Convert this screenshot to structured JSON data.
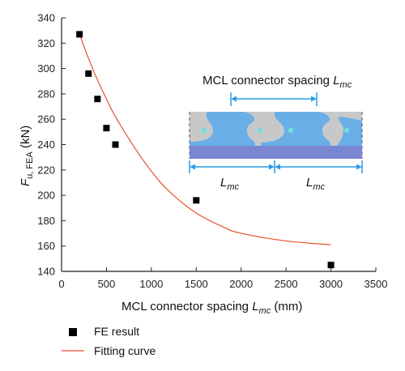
{
  "chart_data": {
    "type": "scatter",
    "x_ticks": [
      "0",
      "500",
      "1000",
      "1500",
      "2000",
      "2500",
      "3000",
      "3500"
    ],
    "y_ticks": [
      "140",
      "160",
      "180",
      "200",
      "220",
      "240",
      "260",
      "280",
      "300",
      "320",
      "340"
    ],
    "xlim": [
      0,
      3500
    ],
    "ylim": [
      140,
      340
    ],
    "xlabel": {
      "text": "MCL connector spacing ",
      "var": "L",
      "sub": "mc",
      "unit": " (mm)"
    },
    "ylabel": {
      "text": "F",
      "sub": "u, FEA",
      "unit": " (kN)"
    },
    "series": [
      {
        "name": "FE result",
        "kind": "markers",
        "color": "#000000",
        "x": [
          200,
          300,
          400,
          500,
          600,
          1500,
          3000
        ],
        "y": [
          327,
          296,
          276,
          253,
          240,
          196,
          145
        ]
      },
      {
        "name": "Fitting curve",
        "kind": "line",
        "color": "#e8502d",
        "x": [
          200,
          300,
          400,
          500,
          600,
          800,
          1000,
          1200,
          1500,
          1800,
          2000,
          2500,
          3000
        ],
        "y": [
          327,
          308,
          291,
          276,
          262,
          239,
          219,
          203,
          186,
          175,
          170,
          164,
          161
        ]
      }
    ],
    "legend_position": "bottom-left",
    "grid": false
  },
  "inset": {
    "title": {
      "text": "MCL connector spacing ",
      "var": "L",
      "sub": "mc"
    },
    "dim_label_1": {
      "var": "L",
      "sub": "mc"
    },
    "dim_label_2": {
      "var": "L",
      "sub": "mc"
    },
    "colors": {
      "slab": "#c8c8c8",
      "connector": "#6aaee8",
      "beam": "#7a86d2",
      "dot": "#6ee0dc",
      "arrow": "#2b9be8"
    }
  }
}
